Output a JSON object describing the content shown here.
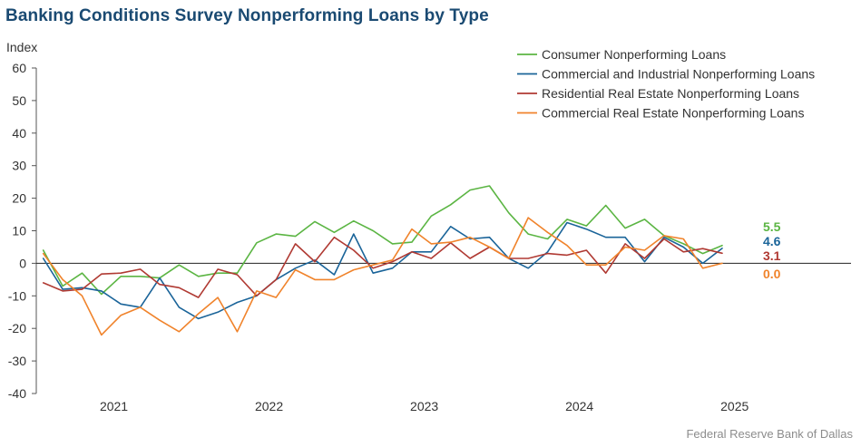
{
  "chart_data": {
    "type": "line",
    "title": "Banking Conditions Survey Nonperforming Loans by Type",
    "ylabel": "Index",
    "ylim": [
      -40,
      60
    ],
    "yticks": [
      60,
      50,
      40,
      30,
      20,
      10,
      0,
      -10,
      -20,
      -30,
      -40
    ],
    "xlim": [
      2020.5,
      2025.75
    ],
    "xticks": [
      {
        "label": "2021",
        "x": 2021.0
      },
      {
        "label": "2022",
        "x": 2022.0
      },
      {
        "label": "2023",
        "x": 2023.0
      },
      {
        "label": "2024",
        "x": 2024.0
      },
      {
        "label": "2025",
        "x": 2025.0
      }
    ],
    "x": [
      2020.545,
      2020.67,
      2020.795,
      2020.92,
      2021.045,
      2021.17,
      2021.295,
      2021.42,
      2021.545,
      2021.67,
      2021.795,
      2021.92,
      2022.045,
      2022.17,
      2022.295,
      2022.42,
      2022.545,
      2022.67,
      2022.795,
      2022.92,
      2023.045,
      2023.17,
      2023.295,
      2023.42,
      2023.545,
      2023.67,
      2023.795,
      2023.92,
      2024.045,
      2024.17,
      2024.295,
      2024.42,
      2024.545,
      2024.67,
      2024.795,
      2024.92
    ],
    "legend_position": "top-right",
    "series": [
      {
        "name": "Consumer Nonperforming Loans",
        "color": "#5bb543",
        "values": [
          4,
          -7,
          -3,
          -9.5,
          -4,
          -4,
          -4.5,
          -0.5,
          -4,
          -3,
          -3,
          6.3,
          9,
          8.3,
          12.8,
          9.5,
          13,
          10,
          6,
          6.5,
          14.5,
          18,
          22.5,
          23.8,
          15.5,
          9,
          7.5,
          13.5,
          11.5,
          17.8,
          10.8,
          13.5,
          8.5,
          6,
          3,
          5.5
        ],
        "end_label": "5.5"
      },
      {
        "name": "Commercial and Industrial Nonperforming Loans",
        "color": "#1a6499",
        "values": [
          1.5,
          -8,
          -7.5,
          -8.5,
          -12.5,
          -13.5,
          -4.5,
          -13.5,
          -17,
          -15,
          -12,
          -10,
          -5,
          -1.5,
          1,
          -3.5,
          9,
          -3,
          -1.5,
          3.5,
          3.5,
          11.3,
          7.5,
          8,
          1.5,
          -1.5,
          3.5,
          12.5,
          10.5,
          8,
          8,
          0.5,
          8,
          5,
          0,
          4.6
        ],
        "end_label": "4.6"
      },
      {
        "name": "Residential Real Estate Nonperforming Loans",
        "color": "#b03a33",
        "values": [
          -6,
          -8.5,
          -8,
          -3.3,
          -3,
          -1.8,
          -6.5,
          -7.5,
          -10.5,
          -1.8,
          -3.5,
          -10,
          -5,
          6,
          0.5,
          8,
          4,
          -1.5,
          0.5,
          3.5,
          1.5,
          6.3,
          1.5,
          5,
          1.5,
          1.5,
          3,
          2.5,
          4,
          -3,
          6,
          1.5,
          7.5,
          3.5,
          4.5,
          3.1
        ],
        "end_label": "3.1"
      },
      {
        "name": "Commercial Real Estate Nonperforming Loans",
        "color": "#f0832b",
        "values": [
          3,
          -5,
          -10,
          -22,
          -16,
          -13.5,
          -17.5,
          -21,
          -15.5,
          -10.5,
          -21,
          -8.5,
          -10.5,
          -2,
          -5,
          -5,
          -2,
          -0.5,
          1,
          10.5,
          6,
          6.5,
          8,
          5,
          1.5,
          14,
          9.5,
          5.5,
          -0.5,
          -0.5,
          5,
          4,
          8.5,
          7.5,
          -1.5,
          0.0
        ],
        "end_label": "0.0"
      }
    ]
  },
  "footer": "Federal Reserve Bank of Dallas"
}
